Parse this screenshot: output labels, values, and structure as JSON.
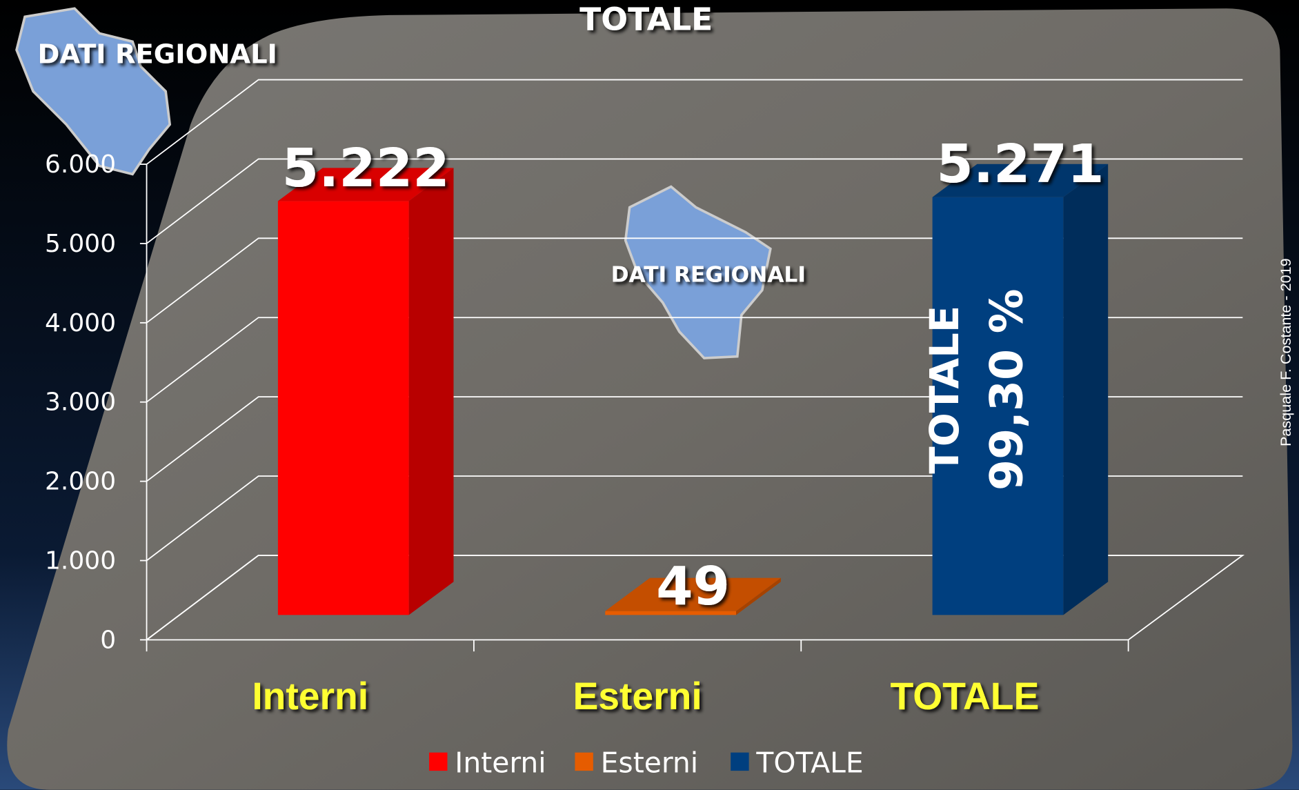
{
  "chart_data": {
    "type": "bar",
    "title": "TOTALE",
    "categories": [
      "Interni",
      "Esterni",
      "TOTALE"
    ],
    "values": [
      5222,
      49,
      5271
    ],
    "value_labels": [
      "5.222",
      "49",
      "5.271"
    ],
    "colors": [
      "#ff0000",
      "#e65c00",
      "#003f7f"
    ],
    "ylim": [
      0,
      6000
    ],
    "yticks": [
      0,
      {
        "value": 1000,
        "label": "1.000"
      },
      {
        "value": 2000,
        "label": "2.000"
      },
      {
        "value": 3000,
        "label": "3.000"
      },
      {
        "value": 4000,
        "label": "4.000"
      },
      {
        "value": 5000,
        "label": "5.000"
      },
      {
        "value": 6000,
        "label": "6.000"
      }
    ],
    "grid": true,
    "badges": [
      "DATI REGIONALI",
      "DATI REGIONALI"
    ],
    "bar_annotation": [
      "TOTALE",
      "99,30 %"
    ],
    "credit": "Pasquale  F. Costante - 2019"
  }
}
